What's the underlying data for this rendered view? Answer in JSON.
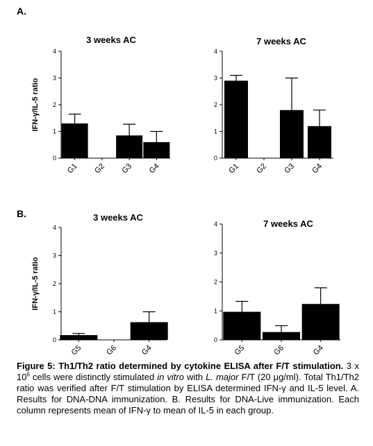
{
  "panels": {
    "a_label": "A.",
    "b_label": "B."
  },
  "chart_data": [
    {
      "id": "a1",
      "type": "bar",
      "title": "3 weeks AC",
      "ylabel": "IFN-γ/IL-5 ratio",
      "categories": [
        "G1",
        "G2",
        "G3",
        "G4"
      ],
      "values": [
        1.3,
        0,
        0.85,
        0.6
      ],
      "errors": [
        0.35,
        0,
        0.42,
        0.4
      ],
      "ylim": [
        0,
        4
      ],
      "yticks": [
        0,
        1,
        2,
        3,
        4
      ]
    },
    {
      "id": "a2",
      "type": "bar",
      "title": "7 weeks AC",
      "ylabel": "",
      "categories": [
        "G1",
        "G2",
        "G3",
        "G4"
      ],
      "values": [
        2.9,
        0,
        1.8,
        1.2
      ],
      "errors": [
        0.2,
        0,
        1.2,
        0.6
      ],
      "ylim": [
        0,
        4
      ],
      "yticks": [
        0,
        1,
        2,
        3,
        4
      ]
    },
    {
      "id": "b1",
      "type": "bar",
      "title": "3 weeks AC",
      "ylabel": "IFN-γ/IL-5 ratio",
      "categories": [
        "G5",
        "G6",
        "G4"
      ],
      "values": [
        0.17,
        0,
        0.63
      ],
      "errors": [
        0.06,
        0,
        0.37
      ],
      "ylim": [
        0,
        4
      ],
      "yticks": [
        0,
        1,
        2,
        3,
        4
      ]
    },
    {
      "id": "b2",
      "type": "bar",
      "title": "7 weeks AC",
      "ylabel": "",
      "categories": [
        "G5",
        "G6",
        "G4"
      ],
      "values": [
        0.97,
        0.27,
        1.24
      ],
      "errors": [
        0.36,
        0.22,
        0.56
      ],
      "ylim": [
        0,
        4
      ],
      "yticks": [
        0,
        1,
        2,
        3,
        4
      ]
    }
  ],
  "caption": {
    "bold": "Figure 5: Th1/Th2 ratio determined by cytokine ELISA after F/T stimulation.",
    "t1": " 3 x 10",
    "sup": "6",
    "t2": " cells were distinctly stimulated ",
    "i1": "in vitro",
    "t3": " with ",
    "i2": "L. major",
    "t4": " F/T (20 μg/ml). Total Th1/Th2 ratio was verified after F/T stimulation by ELISA determined IFN-γ and IL-5 level. A. Results for DNA-DNA immunization. B. Results for DNA-Live immunization. Each column represents mean of IFN-γ to mean of IL-5 in each group."
  }
}
